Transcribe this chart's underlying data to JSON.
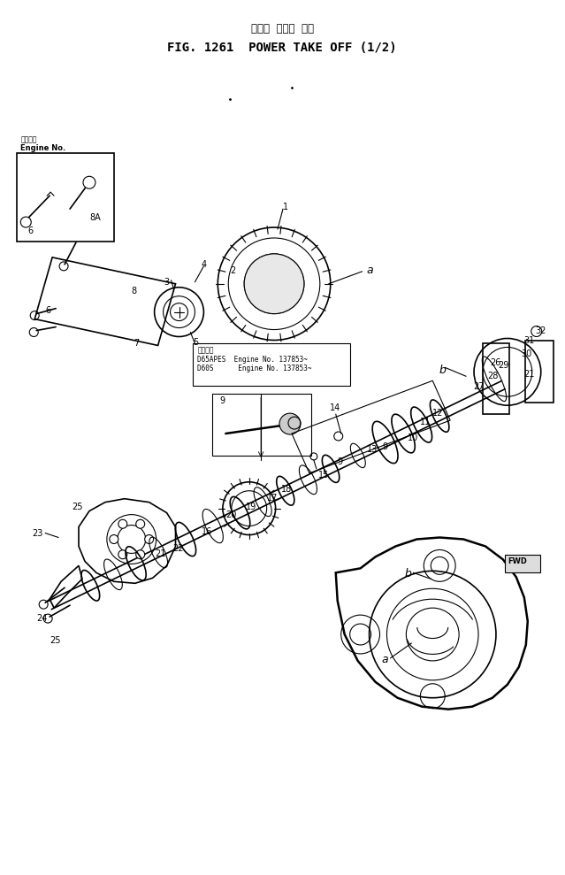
{
  "title_jp": "パワー  テーク  オフ",
  "title_en": "FIG. 1261  POWER TAKE OFF (1/2)",
  "bg_color": "#ffffff",
  "line_color": "#000000",
  "fig_width": 6.39,
  "fig_height": 9.89,
  "dpi": 100,
  "note_text_line1": "D65APES  Engine No. 137853~",
  "note_text_line2": "D60S      Engine No. 137853~",
  "note_label": "適用号等",
  "engine_box_label": "Engine No.",
  "engine_box_sublabel": "決定番号",
  "fwd_label": "FWD"
}
